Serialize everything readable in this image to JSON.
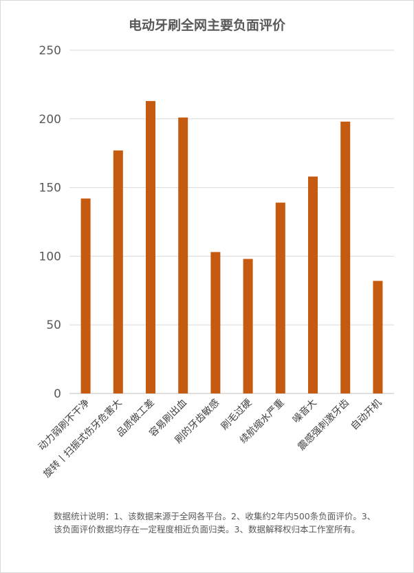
{
  "chart_data": {
    "type": "bar",
    "title": "电动牙刷全网主要负面评价",
    "categories": [
      "动力弱刷不干净",
      "旋转丨扫振式伤牙危害大",
      "品质做工差",
      "容易刷出血",
      "刷的牙齿敏感",
      "刷毛过硬",
      "续航缩水严重",
      "噪音大",
      "震感强刺激牙齿",
      "自动开机"
    ],
    "values": [
      142,
      177,
      213,
      201,
      103,
      98,
      139,
      158,
      198,
      82
    ],
    "ylim": [
      0,
      250
    ],
    "yticks": [
      "0",
      "50",
      "100",
      "150",
      "200",
      "250"
    ],
    "grid": true,
    "legend": "none",
    "bar_color": "#c55a11"
  },
  "footnote": "数据统计说明：1、该数据来源于全网各平台。2、收集约2年内500条负面评价。3、该负面评价数据均存在一定程度相近负面归类。3、数据解释权归本工作室所有。"
}
